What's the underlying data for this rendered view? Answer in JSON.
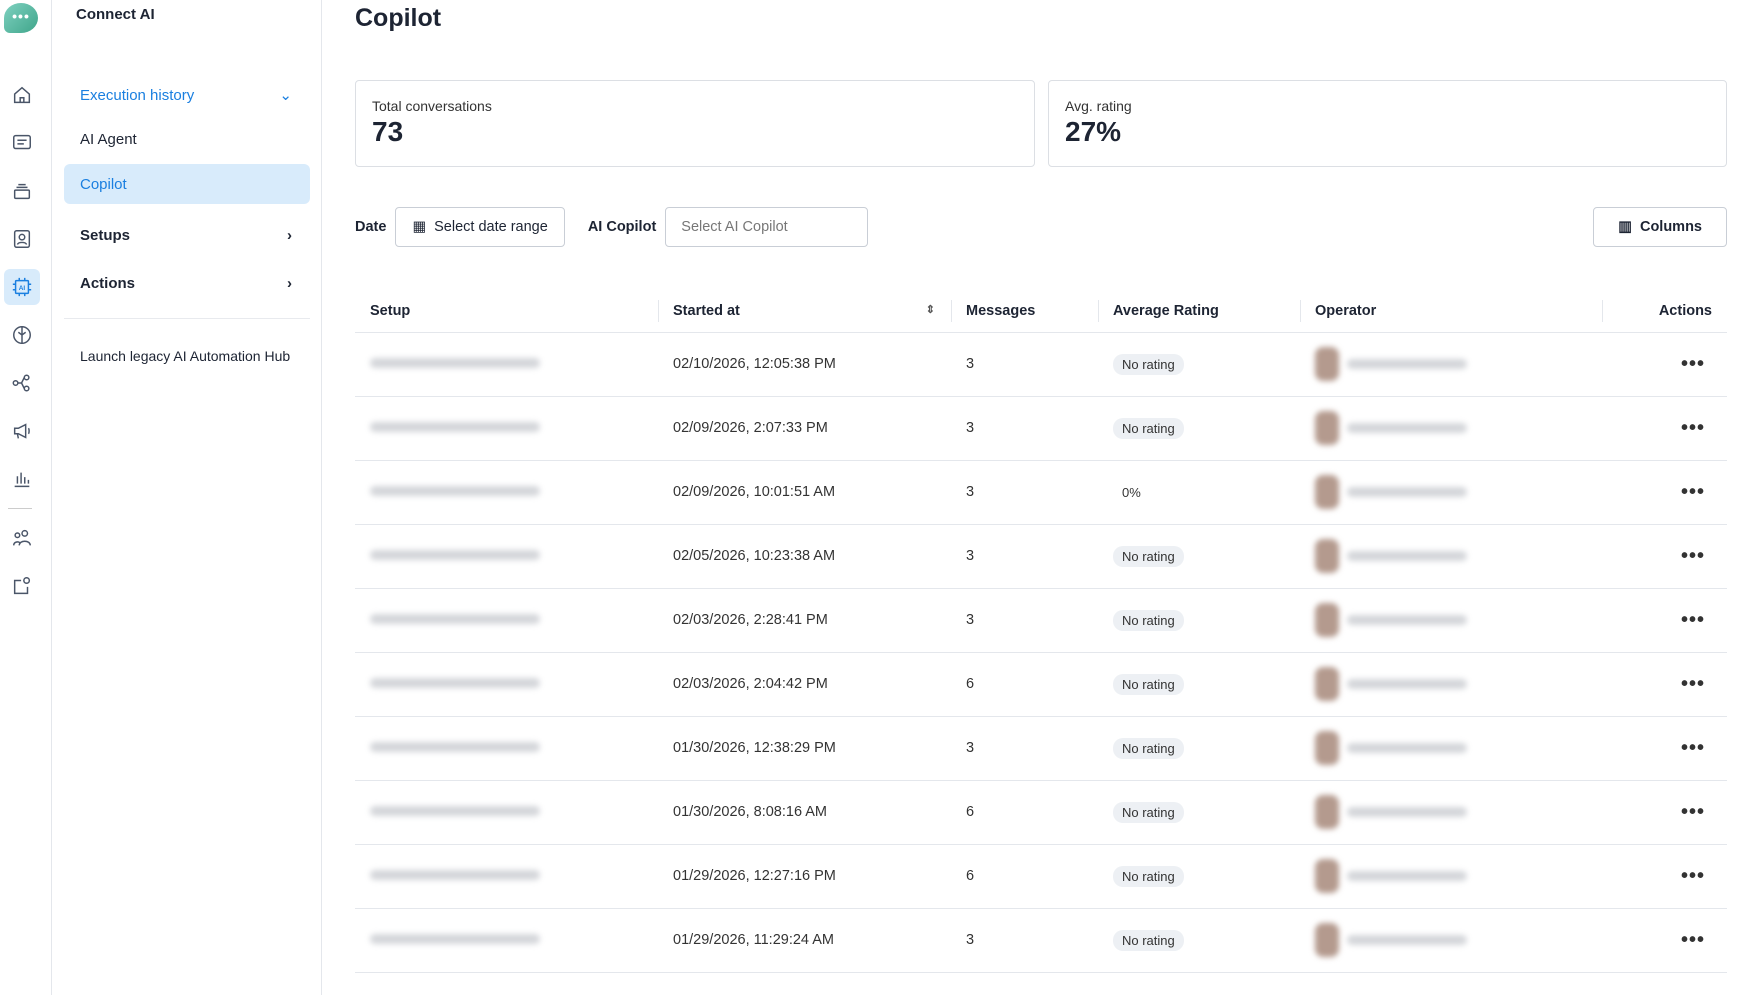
{
  "app": {
    "name": "Connect AI",
    "logo_icon": "chat-bubble-dots"
  },
  "rail_icons": [
    "home-icon",
    "messages-icon",
    "layers-icon",
    "contacts-icon",
    "ai-chip-icon",
    "brain-icon",
    "flow-icon",
    "megaphone-icon",
    "chart-icon",
    "users-icon",
    "integrations-icon"
  ],
  "sidebar": {
    "execution_history": "Execution history",
    "ai_agent": "AI Agent",
    "copilot": "Copilot",
    "setups": "Setups",
    "actions": "Actions",
    "legacy": "Launch legacy AI Automation Hub"
  },
  "page": {
    "title": "Copilot"
  },
  "stats": {
    "total_label": "Total conversations",
    "total_value": "73",
    "avg_label": "Avg. rating",
    "avg_value": "27%"
  },
  "filters": {
    "date_label": "Date",
    "date_button": "Select date range",
    "copilot_label": "AI Copilot",
    "copilot_placeholder": "Select AI Copilot",
    "columns_button": "Columns"
  },
  "table": {
    "headers": {
      "setup": "Setup",
      "started": "Started at",
      "messages": "Messages",
      "rating": "Average Rating",
      "operator": "Operator",
      "actions": "Actions"
    },
    "rows": [
      {
        "started": "02/10/2026, 12:05:38 PM",
        "messages": "3",
        "rating": "No rating"
      },
      {
        "started": "02/09/2026, 2:07:33 PM",
        "messages": "3",
        "rating": "No rating"
      },
      {
        "started": "02/09/2026, 10:01:51 AM",
        "messages": "3",
        "rating": "0%"
      },
      {
        "started": "02/05/2026, 10:23:38 AM",
        "messages": "3",
        "rating": "No rating"
      },
      {
        "started": "02/03/2026, 2:28:41 PM",
        "messages": "3",
        "rating": "No rating"
      },
      {
        "started": "02/03/2026, 2:04:42 PM",
        "messages": "6",
        "rating": "No rating"
      },
      {
        "started": "01/30/2026, 12:38:29 PM",
        "messages": "3",
        "rating": "No rating"
      },
      {
        "started": "01/30/2026, 8:08:16 AM",
        "messages": "6",
        "rating": "No rating"
      },
      {
        "started": "01/29/2026, 12:27:16 PM",
        "messages": "6",
        "rating": "No rating"
      },
      {
        "started": "01/29/2026, 11:29:24 AM",
        "messages": "3",
        "rating": "No rating"
      }
    ]
  },
  "colors": {
    "accent": "#1a7fe0",
    "selected_bg": "#d8ebfb"
  }
}
